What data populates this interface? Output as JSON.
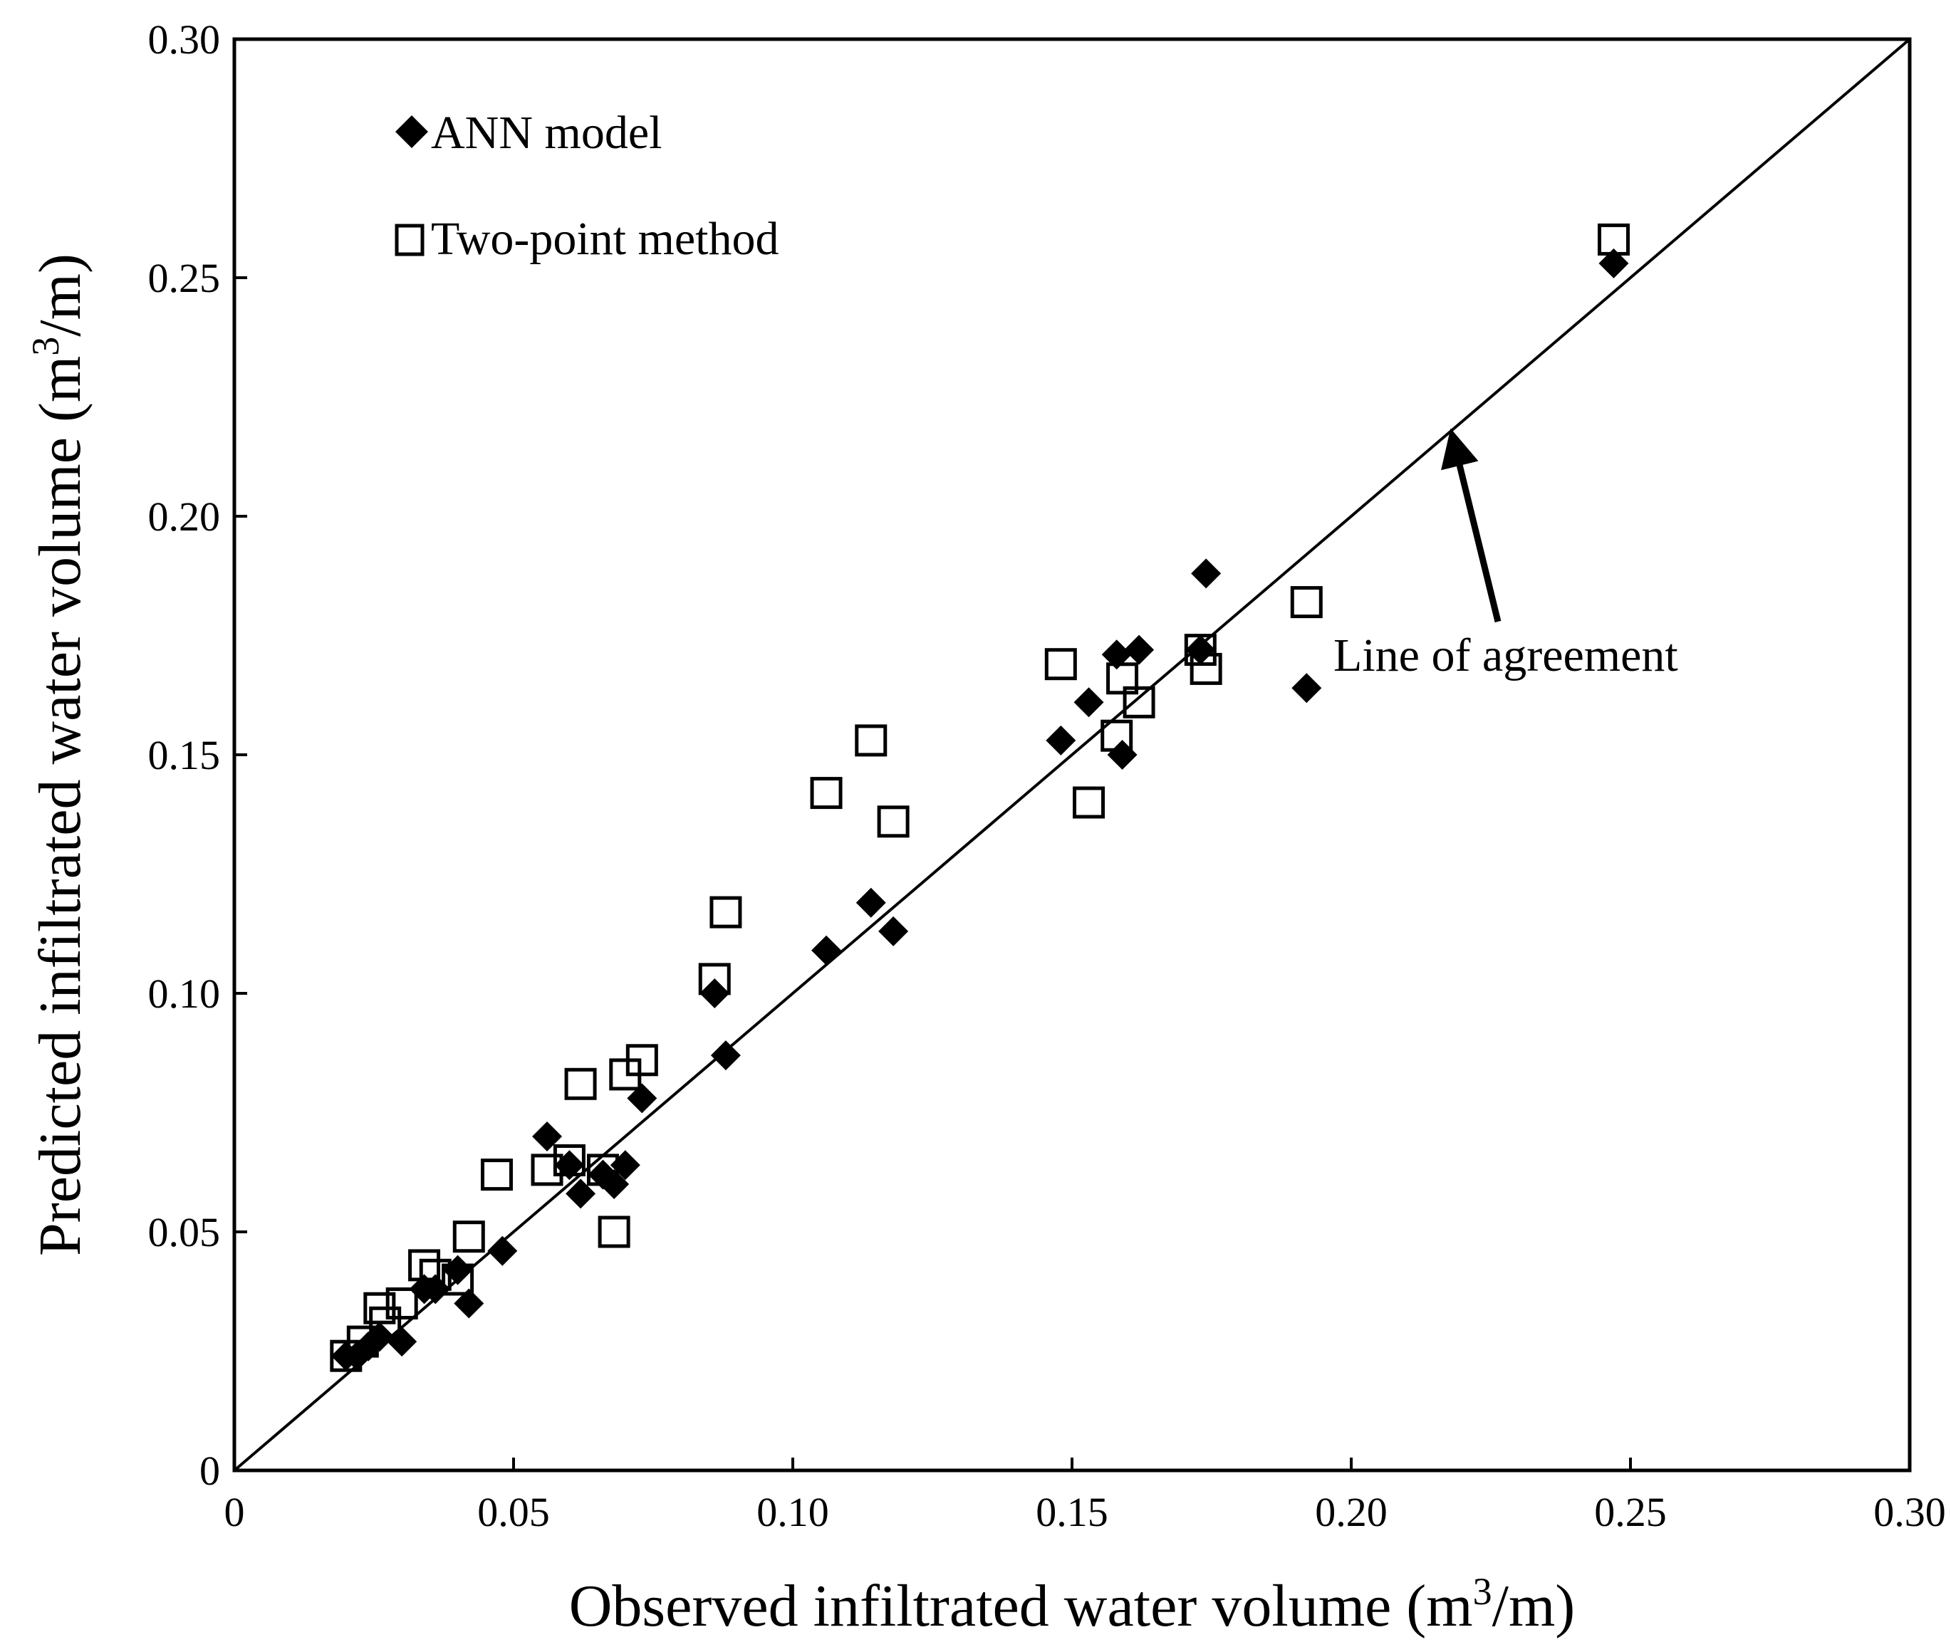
{
  "chart_data": {
    "type": "scatter",
    "title": "",
    "xlabel": "Observed infiltrated water volume (m",
    "xlabel_sup": "3",
    "xlabel_tail": "/m)",
    "ylabel": "Predicted infiltrated water volume (m",
    "ylabel_sup": "3",
    "ylabel_tail": "/m)",
    "xlim": [
      0,
      0.3
    ],
    "ylim": [
      0,
      0.3
    ],
    "xticks": [
      {
        "value": 0,
        "label": "0"
      },
      {
        "value": 0.05,
        "label": "0.05"
      },
      {
        "value": 0.1,
        "label": "0.10"
      },
      {
        "value": 0.15,
        "label": "0.15"
      },
      {
        "value": 0.2,
        "label": "0.20"
      },
      {
        "value": 0.25,
        "label": "0.25"
      },
      {
        "value": 0.3,
        "label": "0.30"
      }
    ],
    "yticks": [
      {
        "value": 0,
        "label": "0"
      },
      {
        "value": 0.05,
        "label": "0.05"
      },
      {
        "value": 0.1,
        "label": "0.10"
      },
      {
        "value": 0.15,
        "label": "0.15"
      },
      {
        "value": 0.2,
        "label": "0.20"
      },
      {
        "value": 0.25,
        "label": "0.25"
      },
      {
        "value": 0.3,
        "label": "0.30"
      }
    ],
    "grid": false,
    "legend_position": "top-left",
    "series": [
      {
        "name": "ANN model",
        "marker": "filled-diamond",
        "color": "#000000",
        "points": [
          [
            0.02,
            0.024
          ],
          [
            0.022,
            0.024
          ],
          [
            0.024,
            0.026
          ],
          [
            0.026,
            0.028
          ],
          [
            0.03,
            0.027
          ],
          [
            0.034,
            0.038
          ],
          [
            0.036,
            0.038
          ],
          [
            0.04,
            0.042
          ],
          [
            0.042,
            0.035
          ],
          [
            0.048,
            0.046
          ],
          [
            0.056,
            0.07
          ],
          [
            0.06,
            0.064
          ],
          [
            0.062,
            0.058
          ],
          [
            0.066,
            0.062
          ],
          [
            0.068,
            0.06
          ],
          [
            0.07,
            0.064
          ],
          [
            0.073,
            0.078
          ],
          [
            0.086,
            0.1
          ],
          [
            0.088,
            0.087
          ],
          [
            0.106,
            0.109
          ],
          [
            0.114,
            0.119
          ],
          [
            0.118,
            0.113
          ],
          [
            0.148,
            0.153
          ],
          [
            0.153,
            0.161
          ],
          [
            0.158,
            0.171
          ],
          [
            0.159,
            0.15
          ],
          [
            0.162,
            0.172
          ],
          [
            0.173,
            0.172
          ],
          [
            0.174,
            0.188
          ],
          [
            0.192,
            0.164
          ],
          [
            0.247,
            0.253
          ]
        ]
      },
      {
        "name": "Two-point method",
        "marker": "open-square",
        "color": "#000000",
        "points": [
          [
            0.02,
            0.024
          ],
          [
            0.023,
            0.027
          ],
          [
            0.026,
            0.034
          ],
          [
            0.027,
            0.031
          ],
          [
            0.03,
            0.035
          ],
          [
            0.034,
            0.043
          ],
          [
            0.036,
            0.041
          ],
          [
            0.04,
            0.04
          ],
          [
            0.042,
            0.049
          ],
          [
            0.047,
            0.062
          ],
          [
            0.056,
            0.063
          ],
          [
            0.06,
            0.065
          ],
          [
            0.062,
            0.081
          ],
          [
            0.066,
            0.063
          ],
          [
            0.068,
            0.05
          ],
          [
            0.07,
            0.083
          ],
          [
            0.073,
            0.086
          ],
          [
            0.086,
            0.103
          ],
          [
            0.088,
            0.117
          ],
          [
            0.106,
            0.142
          ],
          [
            0.114,
            0.153
          ],
          [
            0.118,
            0.136
          ],
          [
            0.148,
            0.169
          ],
          [
            0.153,
            0.14
          ],
          [
            0.158,
            0.154
          ],
          [
            0.159,
            0.166
          ],
          [
            0.162,
            0.161
          ],
          [
            0.173,
            0.172
          ],
          [
            0.174,
            0.168
          ],
          [
            0.192,
            0.182
          ],
          [
            0.247,
            0.258
          ]
        ]
      }
    ],
    "reference_line": {
      "name": "Line of agreement",
      "from": [
        0,
        0
      ],
      "to": [
        0.3,
        0.3
      ]
    },
    "annotations": [
      {
        "text": "Line of agreement",
        "arrow_target": [
          0.218,
          0.218
        ]
      }
    ]
  }
}
